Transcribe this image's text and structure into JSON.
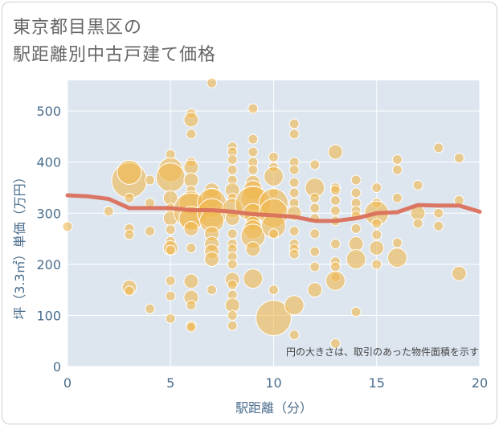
{
  "chart_data": {
    "type": "scatter",
    "title_lines": [
      "東京都目黒区の",
      "駅距離別中古戸建て価格"
    ],
    "xlabel": "駅距離（分）",
    "ylabel": "坪（3.3㎡）単価（万円）",
    "xlim": [
      0,
      20
    ],
    "ylim": [
      0,
      560
    ],
    "xticks": [
      0,
      5,
      10,
      15,
      20
    ],
    "yticks": [
      0,
      100,
      200,
      300,
      400,
      500
    ],
    "grid": true,
    "annotation": "円の大きさは、取引のあった物件面積を示す",
    "colors": {
      "bubble": "#f0b74f",
      "line": "#d9705b",
      "background": "#dde6ef",
      "grid": "#ffffff"
    },
    "bubbles": [
      {
        "x": 0,
        "y": 274,
        "s": 2
      },
      {
        "x": 2,
        "y": 304,
        "s": 2
      },
      {
        "x": 3,
        "y": 364,
        "s": 7
      },
      {
        "x": 3,
        "y": 380,
        "s": 5
      },
      {
        "x": 3,
        "y": 330,
        "s": 2
      },
      {
        "x": 3,
        "y": 270,
        "s": 2
      },
      {
        "x": 3,
        "y": 258,
        "s": 2
      },
      {
        "x": 3,
        "y": 155,
        "s": 3
      },
      {
        "x": 3,
        "y": 148,
        "s": 2
      },
      {
        "x": 4,
        "y": 365,
        "s": 2
      },
      {
        "x": 4,
        "y": 320,
        "s": 2
      },
      {
        "x": 4,
        "y": 265,
        "s": 2
      },
      {
        "x": 4,
        "y": 113,
        "s": 2
      },
      {
        "x": 5,
        "y": 415,
        "s": 2
      },
      {
        "x": 5,
        "y": 385,
        "s": 5
      },
      {
        "x": 5,
        "y": 370,
        "s": 6
      },
      {
        "x": 5,
        "y": 330,
        "s": 3
      },
      {
        "x": 5,
        "y": 310,
        "s": 2
      },
      {
        "x": 5,
        "y": 290,
        "s": 3
      },
      {
        "x": 5,
        "y": 268,
        "s": 2
      },
      {
        "x": 5,
        "y": 245,
        "s": 2
      },
      {
        "x": 5,
        "y": 232,
        "s": 3
      },
      {
        "x": 5,
        "y": 228,
        "s": 2
      },
      {
        "x": 5,
        "y": 168,
        "s": 2
      },
      {
        "x": 5,
        "y": 138,
        "s": 2
      },
      {
        "x": 5,
        "y": 94,
        "s": 2
      },
      {
        "x": 6,
        "y": 495,
        "s": 2
      },
      {
        "x": 6,
        "y": 483,
        "s": 3
      },
      {
        "x": 6,
        "y": 455,
        "s": 2
      },
      {
        "x": 6,
        "y": 400,
        "s": 2
      },
      {
        "x": 6,
        "y": 390,
        "s": 3
      },
      {
        "x": 6,
        "y": 365,
        "s": 3
      },
      {
        "x": 6,
        "y": 345,
        "s": 2
      },
      {
        "x": 6,
        "y": 320,
        "s": 5
      },
      {
        "x": 6,
        "y": 305,
        "s": 7
      },
      {
        "x": 6,
        "y": 290,
        "s": 5
      },
      {
        "x": 6,
        "y": 270,
        "s": 3
      },
      {
        "x": 6,
        "y": 232,
        "s": 2
      },
      {
        "x": 6,
        "y": 167,
        "s": 3
      },
      {
        "x": 6,
        "y": 135,
        "s": 3
      },
      {
        "x": 6,
        "y": 120,
        "s": 2
      },
      {
        "x": 6,
        "y": 80,
        "s": 2
      },
      {
        "x": 6,
        "y": 77,
        "s": 2
      },
      {
        "x": 7,
        "y": 555,
        "s": 2
      },
      {
        "x": 7,
        "y": 345,
        "s": 3
      },
      {
        "x": 7,
        "y": 330,
        "s": 4
      },
      {
        "x": 7,
        "y": 320,
        "s": 6
      },
      {
        "x": 7,
        "y": 300,
        "s": 6
      },
      {
        "x": 7,
        "y": 285,
        "s": 5
      },
      {
        "x": 7,
        "y": 260,
        "s": 3
      },
      {
        "x": 7,
        "y": 240,
        "s": 3
      },
      {
        "x": 7,
        "y": 225,
        "s": 3
      },
      {
        "x": 7,
        "y": 210,
        "s": 3
      },
      {
        "x": 7,
        "y": 150,
        "s": 2
      },
      {
        "x": 8,
        "y": 430,
        "s": 2
      },
      {
        "x": 8,
        "y": 420,
        "s": 2
      },
      {
        "x": 8,
        "y": 405,
        "s": 2
      },
      {
        "x": 8,
        "y": 385,
        "s": 2
      },
      {
        "x": 8,
        "y": 365,
        "s": 2
      },
      {
        "x": 8,
        "y": 345,
        "s": 3
      },
      {
        "x": 8,
        "y": 330,
        "s": 2
      },
      {
        "x": 8,
        "y": 310,
        "s": 4
      },
      {
        "x": 8,
        "y": 290,
        "s": 3
      },
      {
        "x": 8,
        "y": 260,
        "s": 2
      },
      {
        "x": 8,
        "y": 240,
        "s": 2
      },
      {
        "x": 8,
        "y": 230,
        "s": 2
      },
      {
        "x": 8,
        "y": 215,
        "s": 2
      },
      {
        "x": 8,
        "y": 200,
        "s": 2
      },
      {
        "x": 8,
        "y": 170,
        "s": 3
      },
      {
        "x": 8,
        "y": 160,
        "s": 2
      },
      {
        "x": 8,
        "y": 140,
        "s": 2
      },
      {
        "x": 8,
        "y": 120,
        "s": 3
      },
      {
        "x": 8,
        "y": 100,
        "s": 2
      },
      {
        "x": 8,
        "y": 80,
        "s": 2
      },
      {
        "x": 9,
        "y": 505,
        "s": 2
      },
      {
        "x": 9,
        "y": 445,
        "s": 2
      },
      {
        "x": 9,
        "y": 420,
        "s": 2
      },
      {
        "x": 9,
        "y": 400,
        "s": 2
      },
      {
        "x": 9,
        "y": 385,
        "s": 2
      },
      {
        "x": 9,
        "y": 360,
        "s": 3
      },
      {
        "x": 9,
        "y": 345,
        "s": 4
      },
      {
        "x": 9,
        "y": 330,
        "s": 5
      },
      {
        "x": 9,
        "y": 318,
        "s": 7
      },
      {
        "x": 9,
        "y": 300,
        "s": 4
      },
      {
        "x": 9,
        "y": 280,
        "s": 3
      },
      {
        "x": 9,
        "y": 268,
        "s": 4
      },
      {
        "x": 9,
        "y": 255,
        "s": 5
      },
      {
        "x": 9,
        "y": 230,
        "s": 3
      },
      {
        "x": 9,
        "y": 172,
        "s": 4
      },
      {
        "x": 10,
        "y": 410,
        "s": 2
      },
      {
        "x": 10,
        "y": 390,
        "s": 2
      },
      {
        "x": 10,
        "y": 372,
        "s": 4
      },
      {
        "x": 10,
        "y": 340,
        "s": 2
      },
      {
        "x": 10,
        "y": 320,
        "s": 6
      },
      {
        "x": 10,
        "y": 300,
        "s": 6
      },
      {
        "x": 10,
        "y": 275,
        "s": 5
      },
      {
        "x": 10,
        "y": 260,
        "s": 2
      },
      {
        "x": 10,
        "y": 150,
        "s": 2
      },
      {
        "x": 10,
        "y": 95,
        "s": 7
      },
      {
        "x": 11,
        "y": 475,
        "s": 2
      },
      {
        "x": 11,
        "y": 455,
        "s": 2
      },
      {
        "x": 11,
        "y": 400,
        "s": 2
      },
      {
        "x": 11,
        "y": 385,
        "s": 2
      },
      {
        "x": 11,
        "y": 360,
        "s": 2
      },
      {
        "x": 11,
        "y": 340,
        "s": 2
      },
      {
        "x": 11,
        "y": 320,
        "s": 2
      },
      {
        "x": 11,
        "y": 300,
        "s": 3
      },
      {
        "x": 11,
        "y": 265,
        "s": 2
      },
      {
        "x": 11,
        "y": 240,
        "s": 2
      },
      {
        "x": 11,
        "y": 230,
        "s": 2
      },
      {
        "x": 11,
        "y": 220,
        "s": 2
      },
      {
        "x": 11,
        "y": 120,
        "s": 4
      },
      {
        "x": 11,
        "y": 62,
        "s": 2
      },
      {
        "x": 12,
        "y": 395,
        "s": 2
      },
      {
        "x": 12,
        "y": 350,
        "s": 4
      },
      {
        "x": 12,
        "y": 330,
        "s": 2
      },
      {
        "x": 12,
        "y": 310,
        "s": 2
      },
      {
        "x": 12,
        "y": 290,
        "s": 2
      },
      {
        "x": 12,
        "y": 260,
        "s": 2
      },
      {
        "x": 12,
        "y": 225,
        "s": 2
      },
      {
        "x": 12,
        "y": 195,
        "s": 2
      },
      {
        "x": 12,
        "y": 150,
        "s": 3
      },
      {
        "x": 13,
        "y": 420,
        "s": 3
      },
      {
        "x": 13,
        "y": 350,
        "s": 2
      },
      {
        "x": 13,
        "y": 345,
        "s": 2
      },
      {
        "x": 13,
        "y": 325,
        "s": 2
      },
      {
        "x": 13,
        "y": 305,
        "s": 2
      },
      {
        "x": 13,
        "y": 285,
        "s": 2
      },
      {
        "x": 13,
        "y": 240,
        "s": 2
      },
      {
        "x": 13,
        "y": 205,
        "s": 2
      },
      {
        "x": 13,
        "y": 195,
        "s": 2
      },
      {
        "x": 13,
        "y": 175,
        "s": 2
      },
      {
        "x": 13,
        "y": 168,
        "s": 4
      },
      {
        "x": 13,
        "y": 45,
        "s": 2
      },
      {
        "x": 14,
        "y": 365,
        "s": 2
      },
      {
        "x": 14,
        "y": 340,
        "s": 2
      },
      {
        "x": 14,
        "y": 320,
        "s": 2
      },
      {
        "x": 14,
        "y": 305,
        "s": 2
      },
      {
        "x": 14,
        "y": 295,
        "s": 2
      },
      {
        "x": 14,
        "y": 270,
        "s": 2
      },
      {
        "x": 14,
        "y": 240,
        "s": 3
      },
      {
        "x": 14,
        "y": 210,
        "s": 4
      },
      {
        "x": 14,
        "y": 107,
        "s": 2
      },
      {
        "x": 15,
        "y": 350,
        "s": 2
      },
      {
        "x": 15,
        "y": 320,
        "s": 2
      },
      {
        "x": 15,
        "y": 300,
        "s": 5
      },
      {
        "x": 15,
        "y": 280,
        "s": 2
      },
      {
        "x": 15,
        "y": 258,
        "s": 2
      },
      {
        "x": 15,
        "y": 232,
        "s": 3
      },
      {
        "x": 15,
        "y": 200,
        "s": 2
      },
      {
        "x": 16,
        "y": 405,
        "s": 2
      },
      {
        "x": 16,
        "y": 385,
        "s": 2
      },
      {
        "x": 16,
        "y": 330,
        "s": 2
      },
      {
        "x": 16,
        "y": 242,
        "s": 2
      },
      {
        "x": 16,
        "y": 213,
        "s": 4
      },
      {
        "x": 17,
        "y": 355,
        "s": 2
      },
      {
        "x": 17,
        "y": 300,
        "s": 3
      },
      {
        "x": 17,
        "y": 280,
        "s": 2
      },
      {
        "x": 18,
        "y": 428,
        "s": 2
      },
      {
        "x": 18,
        "y": 300,
        "s": 2
      },
      {
        "x": 18,
        "y": 275,
        "s": 2
      },
      {
        "x": 19,
        "y": 408,
        "s": 2
      },
      {
        "x": 19,
        "y": 325,
        "s": 2
      },
      {
        "x": 19,
        "y": 182,
        "s": 3
      }
    ],
    "trend": {
      "x": [
        0,
        1,
        2,
        3,
        4,
        5,
        6,
        7,
        8,
        9,
        10,
        11,
        12,
        13,
        14,
        15,
        16,
        17,
        18,
        19,
        20
      ],
      "y": [
        335,
        333,
        328,
        310,
        310,
        310,
        306,
        306,
        303,
        298,
        296,
        293,
        285,
        285,
        290,
        300,
        302,
        316,
        315,
        315,
        303
      ]
    }
  }
}
